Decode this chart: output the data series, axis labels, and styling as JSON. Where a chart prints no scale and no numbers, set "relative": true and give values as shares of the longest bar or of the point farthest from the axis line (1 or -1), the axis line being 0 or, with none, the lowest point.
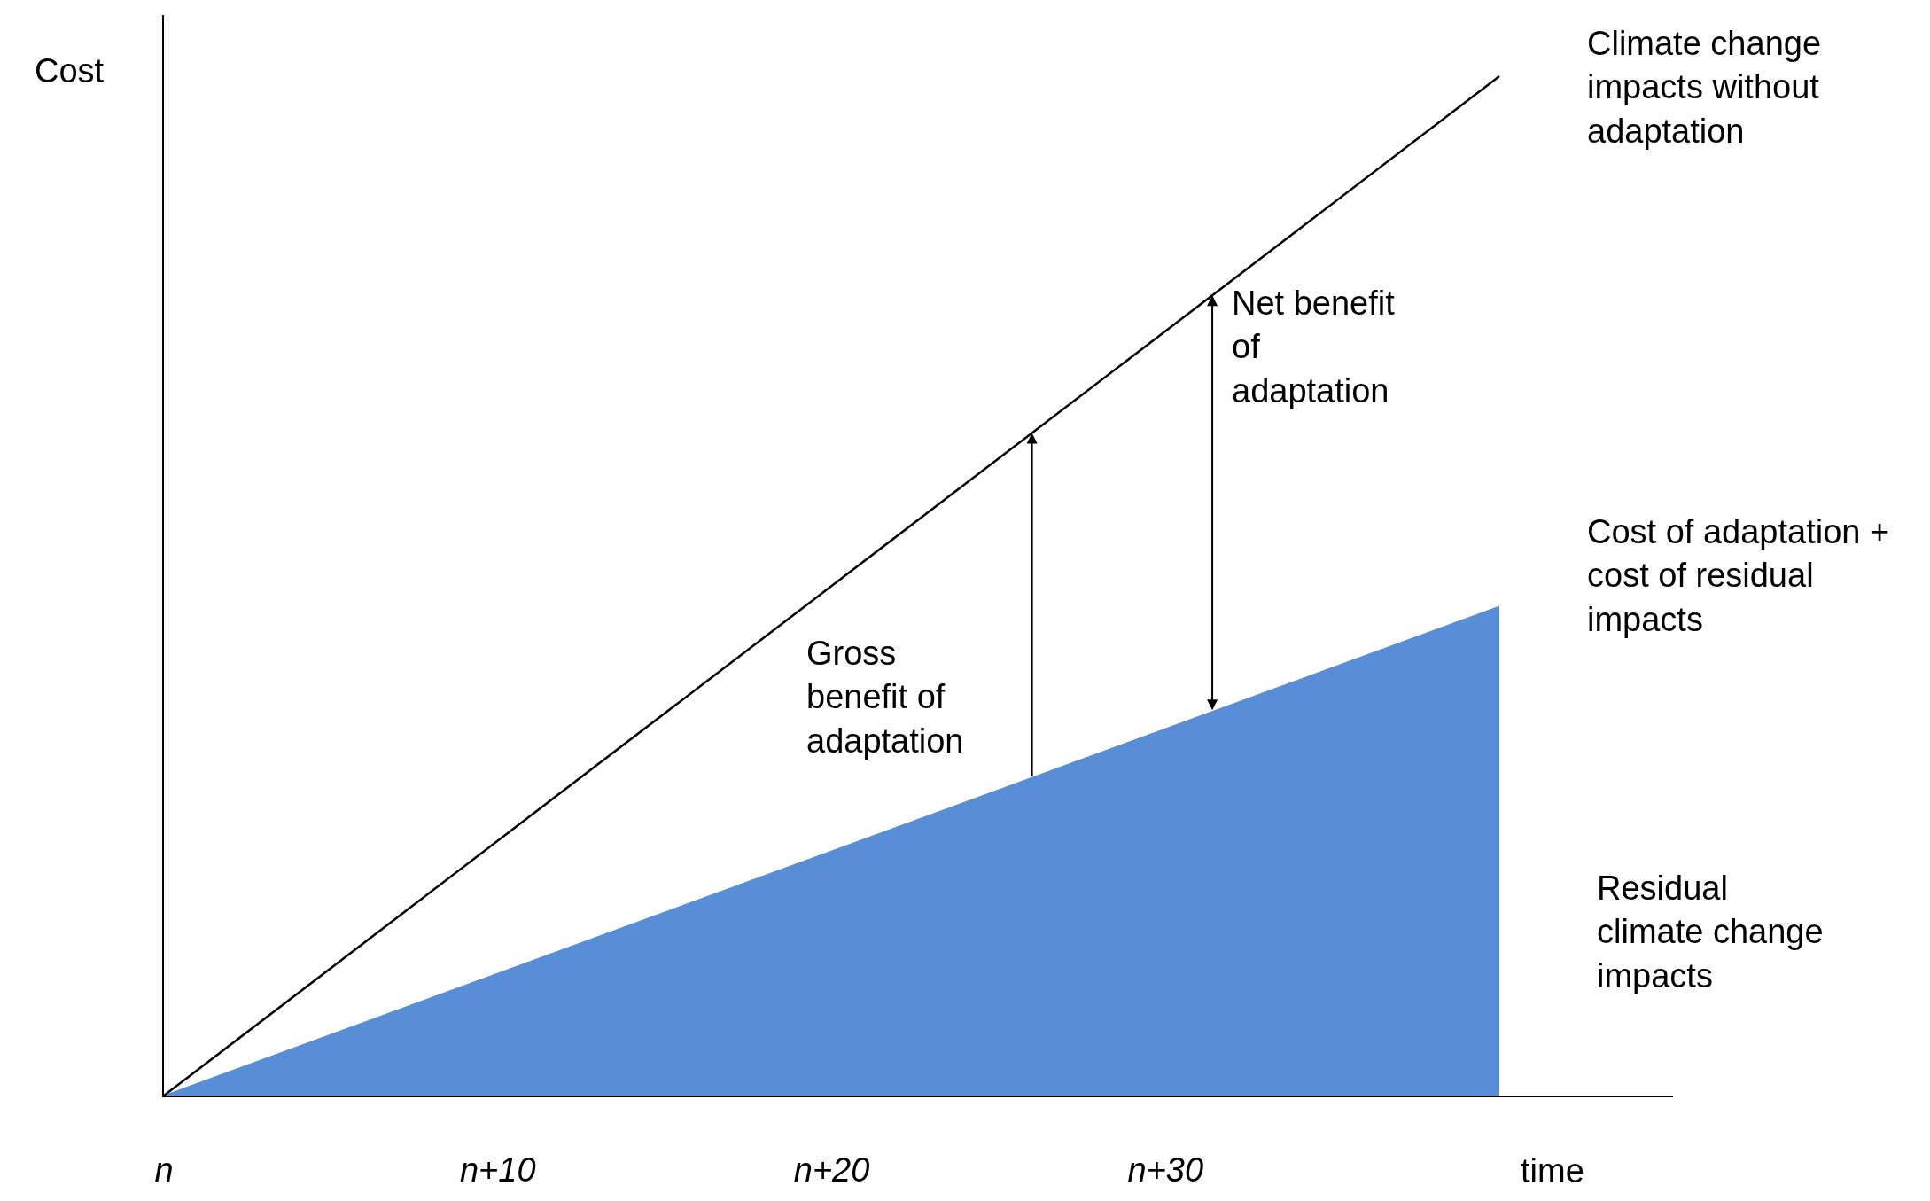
{
  "chart_data": {
    "type": "line",
    "relative": true,
    "ylabel": "Cost",
    "xlabel": "time",
    "categories": [
      "n",
      "n+10",
      "n+20",
      "n+30",
      null
    ],
    "series": [
      {
        "name": "Climate change impacts without adaptation",
        "color": "#000000",
        "values": [
          0,
          0.25,
          0.5,
          0.75,
          1
        ]
      },
      {
        "name": "Residual climate change impacts",
        "type": "area",
        "color": "#578ed6",
        "values": [
          0,
          0.12,
          0.24,
          0.36,
          0.48
        ]
      }
    ],
    "annotations": [
      "Gross benefit of adaptation",
      "Net benefit of adaptation",
      "Cost of adaptation + cost of residual impacts"
    ],
    "legend": false
  }
}
